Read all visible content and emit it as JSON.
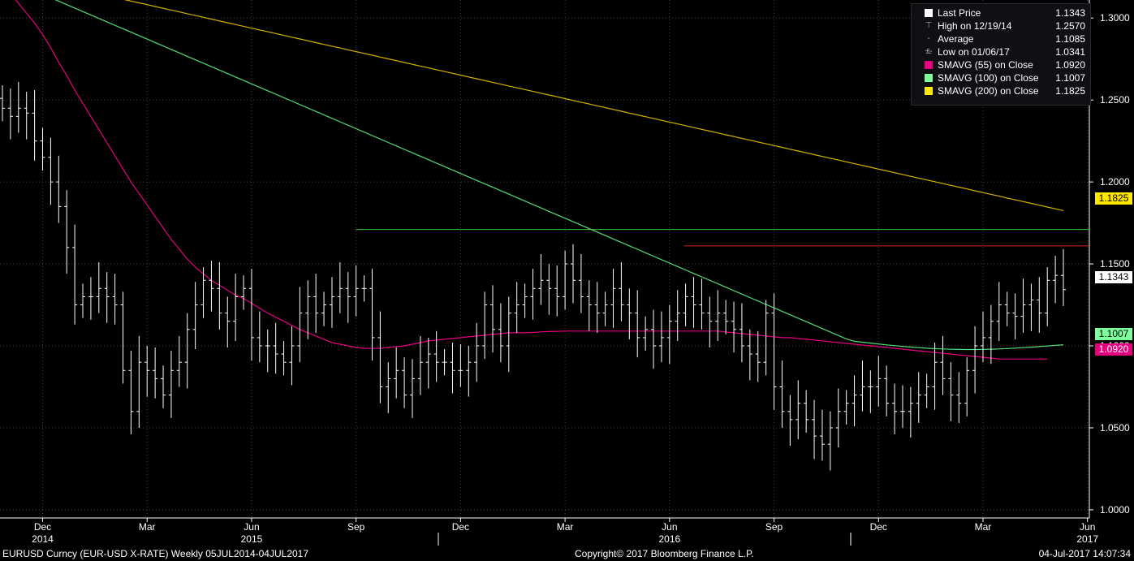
{
  "chart_data": {
    "type": "ohlc",
    "ticker": "EURUSD Curncy",
    "period": "Weekly",
    "ylim": [
      0.995,
      1.311
    ],
    "y_ticks": [
      "1.0000",
      "1.0500",
      "1.1000",
      "1.1500",
      "1.2000",
      "1.2500",
      "1.3000"
    ],
    "x_labels": [
      {
        "month": "Dec",
        "year": "2014",
        "week": 5
      },
      {
        "month": "Mar",
        "year": "",
        "week": 18
      },
      {
        "month": "Jun",
        "year": "2015",
        "week": 31
      },
      {
        "month": "Sep",
        "year": "",
        "week": 44
      },
      {
        "month": "Dec",
        "year": "",
        "week": 57
      },
      {
        "month": "Mar",
        "year": "",
        "week": 70
      },
      {
        "month": "Jun",
        "year": "2016",
        "week": 83
      },
      {
        "month": "Sep",
        "year": "",
        "week": 96
      },
      {
        "month": "Dec",
        "year": "",
        "week": 109
      },
      {
        "month": "Mar",
        "year": "",
        "week": 122
      },
      {
        "month": "Jun",
        "year": "2017",
        "week": 135
      }
    ],
    "close": [
      1.245,
      1.24,
      1.245,
      1.242,
      1.225,
      1.215,
      1.2,
      1.185,
      1.16,
      1.125,
      1.13,
      1.13,
      1.135,
      1.13,
      1.125,
      1.085,
      1.06,
      1.09,
      1.085,
      1.08,
      1.07,
      1.085,
      1.09,
      1.11,
      1.125,
      1.14,
      1.135,
      1.12,
      1.115,
      1.13,
      1.135,
      1.105,
      1.1,
      1.1,
      1.095,
      1.09,
      1.1,
      1.12,
      1.13,
      1.12,
      1.125,
      1.13,
      1.135,
      1.13,
      1.135,
      1.135,
      1.105,
      1.075,
      1.08,
      1.085,
      1.07,
      1.08,
      1.09,
      1.095,
      1.09,
      1.09,
      1.085,
      1.085,
      1.09,
      1.1,
      1.125,
      1.11,
      1.1,
      1.12,
      1.125,
      1.13,
      1.135,
      1.14,
      1.135,
      1.13,
      1.15,
      1.14,
      1.13,
      1.125,
      1.12,
      1.125,
      1.135,
      1.125,
      1.12,
      1.105,
      1.11,
      1.1,
      1.105,
      1.115,
      1.12,
      1.13,
      1.125,
      1.12,
      1.115,
      1.12,
      1.115,
      1.11,
      1.1,
      1.095,
      1.09,
      1.12,
      1.075,
      1.06,
      1.055,
      1.065,
      1.055,
      1.045,
      1.04,
      1.05,
      1.06,
      1.065,
      1.07,
      1.075,
      1.075,
      1.08,
      1.065,
      1.06,
      1.06,
      1.065,
      1.07,
      1.075,
      1.09,
      1.08,
      1.07,
      1.065,
      1.085,
      1.1,
      1.105,
      1.115,
      1.125,
      1.12,
      1.118,
      1.125,
      1.128,
      1.12,
      1.14,
      1.143,
      1.1343
    ],
    "sma55": [
      1.32,
      1.315,
      1.309,
      1.303,
      1.297,
      1.29,
      1.282,
      1.273,
      1.265,
      1.256,
      1.248,
      1.24,
      1.232,
      1.224,
      1.216,
      1.208,
      1.2,
      1.193,
      1.186,
      1.179,
      1.172,
      1.165,
      1.159,
      1.153,
      1.148,
      1.144,
      1.14,
      1.137,
      1.134,
      1.131,
      1.129,
      1.126,
      1.123,
      1.12,
      1.1175,
      1.115,
      1.1125,
      1.11,
      1.108,
      1.106,
      1.104,
      1.102,
      1.101,
      1.1,
      1.099,
      1.0985,
      1.0985,
      1.0985,
      1.099,
      1.0995,
      1.1,
      1.101,
      1.102,
      1.103,
      1.1035,
      1.104,
      1.1045,
      1.105,
      1.1055,
      1.106,
      1.1065,
      1.107,
      1.1075,
      1.108,
      1.108,
      1.108,
      1.1082,
      1.1085,
      1.1087,
      1.1088,
      1.109,
      1.109,
      1.109,
      1.109,
      1.109,
      1.109,
      1.109,
      1.109,
      1.109,
      1.109,
      1.109,
      1.109,
      1.109,
      1.109,
      1.109,
      1.109,
      1.109,
      1.109,
      1.109,
      1.109,
      1.1085,
      1.108,
      1.1075,
      1.107,
      1.1065,
      1.106,
      1.1055,
      1.105,
      1.105,
      1.1045,
      1.104,
      1.1035,
      1.103,
      1.1025,
      1.102,
      1.1015,
      1.101,
      1.1005,
      1.1,
      1.0995,
      1.099,
      1.0985,
      1.098,
      1.0975,
      1.097,
      1.0965,
      1.096,
      1.0955,
      1.095,
      1.0945,
      1.094,
      1.0935,
      1.093,
      1.0925,
      1.092,
      1.092,
      1.092,
      1.092,
      1.092,
      1.092,
      1.092
    ],
    "sma100": [
      1.32,
      1.317,
      1.314,
      1.311,
      1.308,
      1.305,
      1.302,
      1.299,
      1.296,
      1.293,
      1.29,
      1.287,
      1.284,
      1.281,
      1.278,
      1.275,
      1.272,
      1.269,
      1.266,
      1.263,
      1.26,
      1.257,
      1.254,
      1.251,
      1.248,
      1.245,
      1.242,
      1.239,
      1.236,
      1.233,
      1.23,
      1.227,
      1.224,
      1.221,
      1.218,
      1.215,
      1.212,
      1.209,
      1.206,
      1.203,
      1.2,
      1.197,
      1.194,
      1.191,
      1.188,
      1.185,
      1.182,
      1.179,
      1.176,
      1.173,
      1.17,
      1.167,
      1.164,
      1.161,
      1.158,
      1.155,
      1.152,
      1.149,
      1.146,
      1.143,
      1.14,
      1.137,
      1.134,
      1.131,
      1.128,
      1.125,
      1.122,
      1.119,
      1.116,
      1.113,
      1.11,
      1.107,
      1.104,
      1.101,
      1.098,
      1.095,
      1.092,
      1.089,
      1.086,
      1.083,
      1.08,
      1.077,
      1.074,
      1.071,
      1.069,
      1.067,
      1.065,
      1.063,
      1.062,
      1.061,
      1.06,
      1.0595,
      1.059,
      1.0585,
      1.058,
      1.0575,
      1.057,
      1.0565,
      1.056,
      1.0555,
      1.055,
      1.0545,
      1.054,
      1.0535,
      1.053,
      1.0525,
      1.052,
      1.0515,
      1.051,
      1.0505,
      1.05,
      1.0495,
      1.049,
      1.0485,
      1.048,
      1.0475,
      1.047,
      1.047,
      1.0475,
      1.048,
      1.0485,
      1.049,
      1.05,
      1.051,
      1.052,
      1.053,
      1.054,
      1.055,
      1.056,
      1.1007,
      1.1007,
      1.1007,
      1.1007,
      1.1007,
      1.1007
    ],
    "series_latest": {
      "sma55": "1.0920",
      "sma100": "1.1007",
      "sma200": "1.1825",
      "last": "1.1343"
    },
    "hlines": [
      {
        "value": 1.171,
        "color": "#33cc33"
      },
      {
        "value": 1.161,
        "color": "#cc2222"
      }
    ]
  },
  "legend": [
    {
      "label": "Last Price",
      "value": "1.1343",
      "marker": "square",
      "color": "#ffffff"
    },
    {
      "label": "High on 12/19/14",
      "value": "1.2570",
      "marker": "glyph",
      "glyph": "⊤"
    },
    {
      "label": "Average",
      "value": "1.1085",
      "marker": "glyph",
      "glyph": "-+-"
    },
    {
      "label": "Low on 01/06/17",
      "value": "1.0341",
      "marker": "glyph",
      "glyph": "⊥"
    },
    {
      "label": "SMAVG (55) on Close",
      "value": "1.0920",
      "marker": "square",
      "color": "#e6007e"
    },
    {
      "label": "SMAVG (100) on Close",
      "value": "1.1007",
      "marker": "square",
      "color": "#7dff9b"
    },
    {
      "label": "SMAVG (200) on Close",
      "value": "1.1825",
      "marker": "square",
      "color": "#ffe800"
    }
  ],
  "badges": [
    {
      "value": "1.1825",
      "color": "#ffe800"
    },
    {
      "value": "1.1343",
      "color": "#ffffff"
    },
    {
      "value": "1.1007",
      "color": "#7dff9b"
    },
    {
      "value": "1.0920",
      "color": "#e6007e"
    }
  ],
  "colors": {
    "sma55": "#e6007e",
    "sma100": "#55dd77",
    "sma200": "#d4b400",
    "bars": "#ffffff"
  },
  "footer": {
    "left": "EURUSD Curncy (EUR-USD X-RATE)  Weekly 05JUL2014-04JUL2017",
    "center": "Copyright© 2017 Bloomberg Finance L.P.",
    "right": "04-Jul-2017 14:07:34"
  }
}
